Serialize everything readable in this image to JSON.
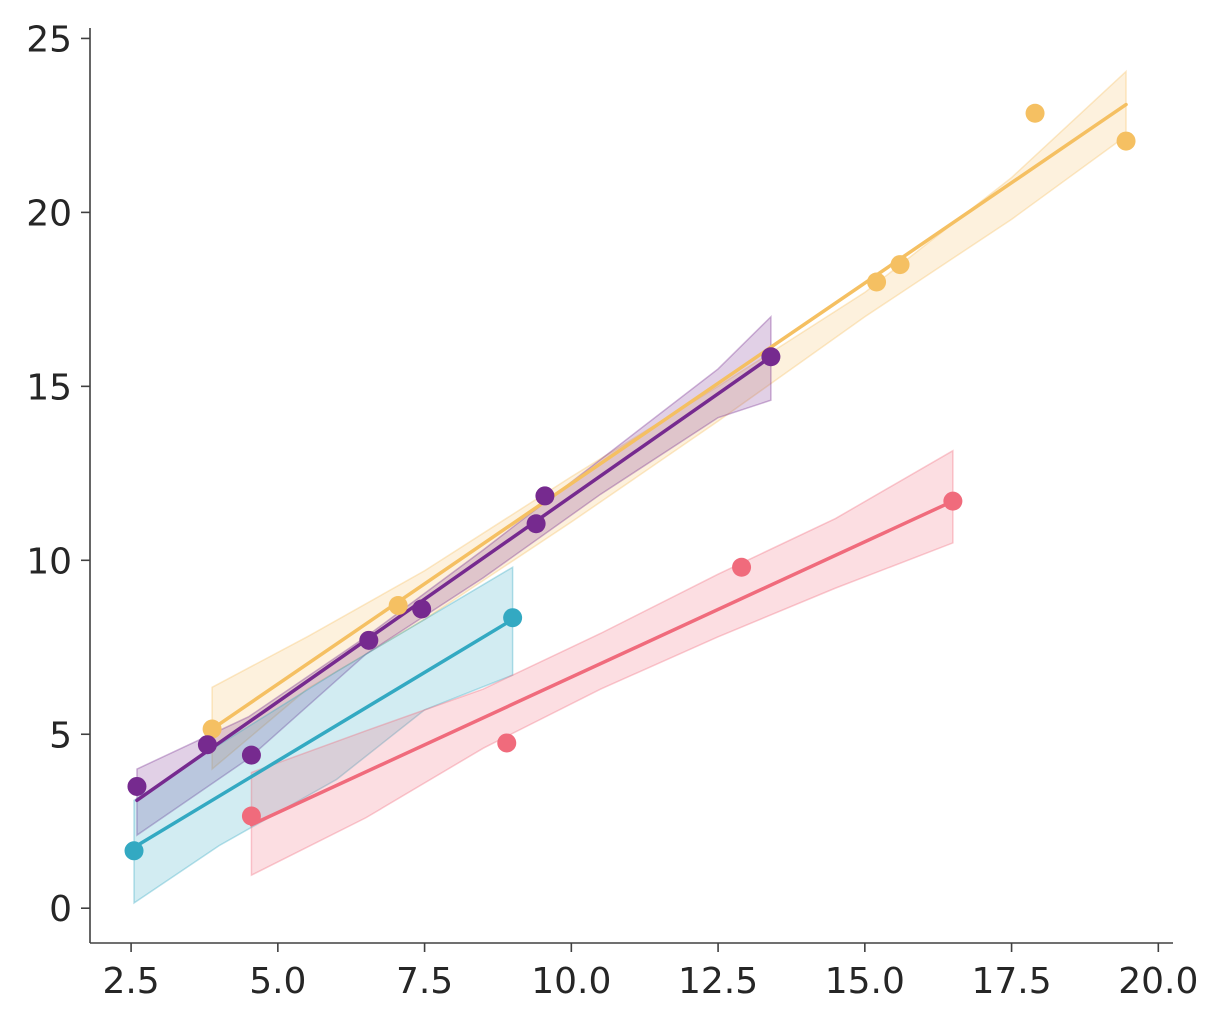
{
  "chart_data": {
    "type": "scatter",
    "title": "",
    "xlabel": "",
    "ylabel": "",
    "xlim": [
      1.8,
      20.25
    ],
    "ylim": [
      -1.0,
      25.3
    ],
    "xticks": [
      2.5,
      5.0,
      7.5,
      10.0,
      12.5,
      15.0,
      17.5,
      20.0
    ],
    "xtick_labels": [
      "2.5",
      "5.0",
      "7.5",
      "10.0",
      "12.5",
      "15.0",
      "17.5",
      "20.0"
    ],
    "yticks": [
      0,
      5,
      10,
      15,
      20,
      25
    ],
    "ytick_labels": [
      "0",
      "5",
      "10",
      "15",
      "20",
      "25"
    ],
    "grid": false,
    "series": [
      {
        "name": "orange",
        "color": "#f5c062",
        "points": [
          [
            3.88,
            5.15
          ],
          [
            7.05,
            8.7
          ],
          [
            15.2,
            18.0
          ],
          [
            15.6,
            18.5
          ],
          [
            17.9,
            22.85
          ],
          [
            19.45,
            22.05
          ]
        ],
        "fit": [
          [
            3.88,
            5.15
          ],
          [
            19.45,
            23.1
          ]
        ],
        "band_upper": [
          [
            3.88,
            6.35
          ],
          [
            5.5,
            7.8
          ],
          [
            7.5,
            9.7
          ],
          [
            10.0,
            12.4
          ],
          [
            12.5,
            15.0
          ],
          [
            15.0,
            17.7
          ],
          [
            17.5,
            21.0
          ],
          [
            19.45,
            24.05
          ]
        ],
        "band_lower": [
          [
            3.88,
            4.0
          ],
          [
            5.5,
            6.3
          ],
          [
            7.5,
            8.3
          ],
          [
            10.0,
            11.1
          ],
          [
            12.5,
            14.0
          ],
          [
            15.0,
            17.0
          ],
          [
            17.5,
            19.8
          ],
          [
            19.45,
            22.2
          ]
        ]
      },
      {
        "name": "purple",
        "color": "#762a8f",
        "points": [
          [
            2.6,
            3.5
          ],
          [
            3.8,
            4.7
          ],
          [
            4.55,
            4.4
          ],
          [
            6.55,
            7.7
          ],
          [
            7.45,
            8.6
          ],
          [
            9.4,
            11.05
          ],
          [
            9.55,
            11.85
          ],
          [
            13.4,
            15.85
          ]
        ],
        "fit": [
          [
            2.6,
            3.1
          ],
          [
            13.4,
            15.85
          ]
        ],
        "band_upper": [
          [
            2.6,
            4.0
          ],
          [
            4.5,
            5.5
          ],
          [
            6.5,
            7.8
          ],
          [
            8.5,
            10.3
          ],
          [
            10.5,
            12.9
          ],
          [
            12.5,
            15.5
          ],
          [
            13.4,
            17.0
          ]
        ],
        "band_lower": [
          [
            2.6,
            2.1
          ],
          [
            4.5,
            4.3
          ],
          [
            6.5,
            7.3
          ],
          [
            8.5,
            9.5
          ],
          [
            10.5,
            11.9
          ],
          [
            12.5,
            14.1
          ],
          [
            13.4,
            14.6
          ]
        ]
      },
      {
        "name": "teal",
        "color": "#33a9c2",
        "points": [
          [
            2.55,
            1.65
          ],
          [
            9.0,
            8.35
          ]
        ],
        "fit": [
          [
            2.55,
            1.75
          ],
          [
            9.0,
            8.3
          ]
        ],
        "band_upper": [
          [
            2.55,
            3.1
          ],
          [
            4.0,
            4.7
          ],
          [
            6.0,
            6.8
          ],
          [
            7.5,
            8.3
          ],
          [
            9.0,
            9.8
          ]
        ],
        "band_lower": [
          [
            2.55,
            0.15
          ],
          [
            4.0,
            1.8
          ],
          [
            6.0,
            3.7
          ],
          [
            7.5,
            5.7
          ],
          [
            9.0,
            6.7
          ]
        ]
      },
      {
        "name": "coral",
        "color": "#f06b7c",
        "points": [
          [
            4.55,
            2.65
          ],
          [
            8.9,
            4.75
          ],
          [
            12.9,
            9.8
          ],
          [
            16.5,
            11.7
          ]
        ],
        "fit": [
          [
            4.55,
            2.4
          ],
          [
            16.5,
            11.7
          ]
        ],
        "band_upper": [
          [
            4.55,
            3.9
          ],
          [
            6.5,
            5.1
          ],
          [
            8.5,
            6.3
          ],
          [
            10.5,
            7.9
          ],
          [
            12.5,
            9.6
          ],
          [
            14.5,
            11.2
          ],
          [
            16.5,
            13.15
          ]
        ],
        "band_lower": [
          [
            4.55,
            0.95
          ],
          [
            6.5,
            2.6
          ],
          [
            8.5,
            4.6
          ],
          [
            10.5,
            6.3
          ],
          [
            12.5,
            7.8
          ],
          [
            14.5,
            9.2
          ],
          [
            16.5,
            10.5
          ]
        ]
      }
    ]
  }
}
